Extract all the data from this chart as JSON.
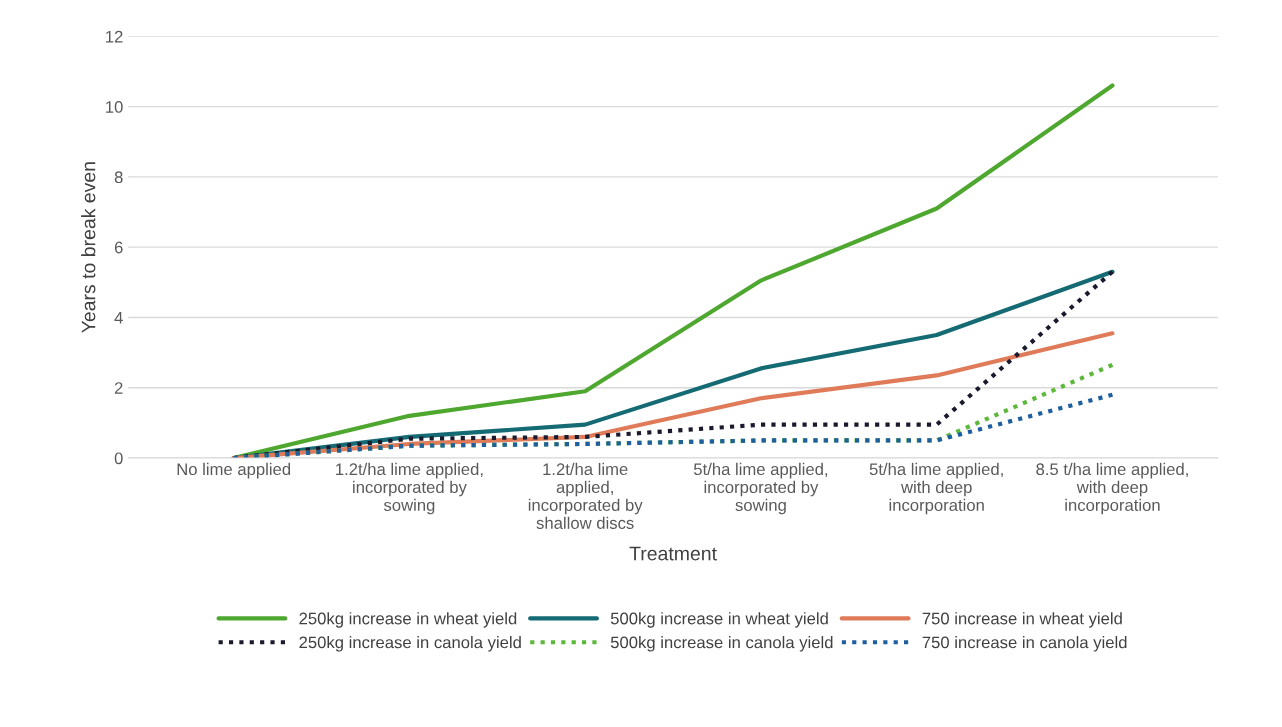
{
  "chart_data": {
    "type": "line",
    "xlabel": "Treatment",
    "ylabel": "Years to break even",
    "categories": [
      "No lime applied",
      "1.2t/ha lime applied,\nincorporated by\nsowing",
      "1.2t/ha lime\napplied,\nincorporated by\nshallow discs",
      "5t/ha lime applied,\nincorporated by\nsowing",
      "5t/ha lime applied,\nwith deep\nincorporation",
      "8.5 t/ha lime applied,\nwith deep\nincorporation"
    ],
    "series": [
      {
        "name": "250kg increase in wheat yield",
        "color": "#4ea72e",
        "line_style": "solid",
        "values": [
          0,
          1.2,
          1.9,
          5.05,
          7.1,
          10.6
        ]
      },
      {
        "name": "500kg increase in wheat yield",
        "color": "#156b73",
        "line_style": "solid",
        "values": [
          0,
          0.6,
          0.95,
          2.55,
          3.5,
          5.3
        ]
      },
      {
        "name": "750 increase in wheat yield",
        "color": "#e07b5a",
        "line_style": "solid",
        "values": [
          0,
          0.4,
          0.6,
          1.7,
          2.35,
          3.55
        ]
      },
      {
        "name": "250kg increase in canola yield",
        "color": "#1a1a2e",
        "line_style": "dotted",
        "values": [
          0,
          0.55,
          0.6,
          0.95,
          0.95,
          5.3
        ]
      },
      {
        "name": "500kg increase in canola yield",
        "color": "#5cb83a",
        "line_style": "dotted",
        "values": [
          0,
          0.35,
          0.4,
          0.5,
          0.5,
          2.65
        ]
      },
      {
        "name": "750 increase in canola yield",
        "color": "#1f5f9f",
        "line_style": "dotted",
        "values": [
          0,
          0.35,
          0.4,
          0.5,
          0.5,
          1.8
        ]
      }
    ],
    "ylim": [
      0,
      12
    ],
    "yticks": [
      0,
      2,
      4,
      6,
      8,
      10,
      12
    ],
    "grid": "y",
    "legend": "bottom",
    "marker": "none"
  }
}
